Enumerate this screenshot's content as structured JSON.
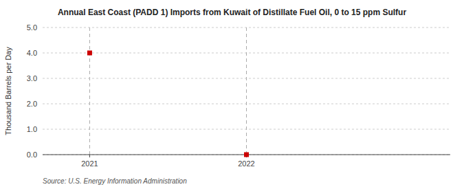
{
  "chart_data": {
    "type": "scatter",
    "title": "Annual East Coast (PADD 1) Imports from Kuwait of Distillate Fuel Oil, 0 to 15 ppm Sulfur",
    "ylabel": "Thousand Barrels per Day",
    "annotations": [
      "Source: U.S. Energy Information Administration"
    ],
    "x": [
      2021,
      2022
    ],
    "values": [
      4.0,
      0.0
    ],
    "color": "#cc0000",
    "marker": "square",
    "xlim": [
      2020.7,
      2023.3
    ],
    "ylim": [
      0.0,
      5.0
    ],
    "xticks": [
      2021,
      2022
    ],
    "yticks": [
      {
        "value": 0.0,
        "label": "0.0"
      },
      {
        "value": 1.0,
        "label": "1.0"
      },
      {
        "value": 2.0,
        "label": "2.0"
      },
      {
        "value": 3.0,
        "label": "3.0"
      },
      {
        "value": 4.0,
        "label": "4.0"
      },
      {
        "value": 5.0,
        "label": "5.0"
      }
    ],
    "grid": true
  }
}
